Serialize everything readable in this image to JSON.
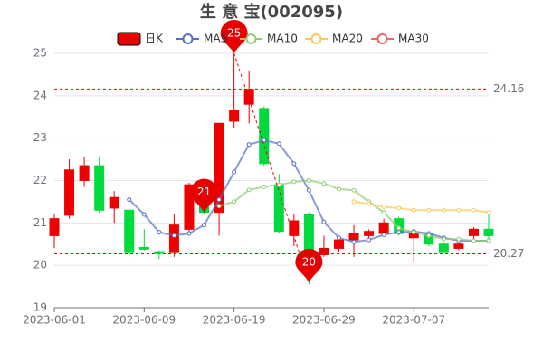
{
  "chart_data": {
    "type": "candlestick",
    "title": "生 意 宝(002095)",
    "categories": [
      "2023-06-01",
      null,
      null,
      null,
      null,
      null,
      "2023-06-09",
      null,
      null,
      null,
      null,
      null,
      "2023-06-19",
      null,
      null,
      null,
      null,
      null,
      "2023-06-29",
      null,
      null,
      null,
      null,
      null,
      "2023-07-07",
      null,
      null,
      null,
      null,
      null
    ],
    "ylim": [
      19,
      25
    ],
    "yticks": [
      19,
      20,
      21,
      22,
      23,
      24,
      25
    ],
    "grid": true,
    "series": [
      {
        "name": "日K",
        "up_color": "#ec0000",
        "down_color": "#00da3c",
        "color": "#ec0000",
        "open": [
          20.7,
          21.18,
          22.0,
          22.35,
          21.35,
          21.3,
          20.42,
          20.32,
          20.3,
          20.85,
          21.6,
          21.25,
          23.4,
          23.8,
          23.7,
          21.9,
          20.7,
          21.2,
          20.25,
          20.4,
          20.6,
          20.7,
          20.75,
          21.1,
          20.65,
          20.75,
          20.5,
          20.4,
          20.7,
          20.85
        ],
        "close": [
          21.1,
          22.25,
          22.35,
          21.3,
          21.6,
          20.3,
          20.38,
          20.28,
          20.95,
          21.9,
          21.25,
          23.35,
          23.65,
          24.15,
          22.4,
          20.8,
          21.05,
          20.1,
          20.4,
          20.6,
          20.75,
          20.8,
          21.0,
          20.75,
          20.75,
          20.5,
          20.3,
          20.5,
          20.85,
          20.7
        ],
        "low": [
          20.4,
          21.1,
          21.85,
          21.25,
          21.0,
          20.2,
          20.35,
          20.15,
          20.2,
          20.8,
          21.2,
          20.7,
          23.25,
          23.35,
          22.35,
          20.75,
          20.45,
          19.55,
          20.2,
          20.3,
          20.2,
          20.55,
          20.7,
          20.7,
          20.1,
          20.45,
          20.3,
          20.35,
          20.6,
          20.6
        ],
        "high": [
          21.2,
          22.5,
          22.55,
          22.55,
          21.75,
          21.3,
          20.85,
          20.35,
          21.2,
          21.95,
          21.9,
          23.35,
          25.0,
          24.6,
          23.75,
          22.15,
          21.2,
          21.25,
          20.7,
          20.7,
          20.95,
          20.85,
          21.1,
          21.15,
          20.8,
          20.8,
          20.55,
          20.6,
          20.9,
          21.2
        ]
      },
      {
        "name": "MA5",
        "color": "#5470c6",
        "values": [
          null,
          null,
          null,
          null,
          null,
          21.55,
          21.2,
          20.78,
          20.7,
          20.75,
          20.95,
          21.55,
          22.2,
          22.85,
          22.95,
          22.87,
          22.4,
          21.77,
          21.02,
          20.65,
          20.55,
          20.6,
          20.72,
          20.78,
          20.8,
          20.75,
          20.65,
          20.58,
          20.58,
          20.58
        ]
      },
      {
        "name": "MA10",
        "color": "#91cc75",
        "values": [
          null,
          null,
          null,
          null,
          null,
          null,
          null,
          null,
          null,
          null,
          null,
          21.4,
          21.5,
          21.78,
          21.85,
          21.9,
          21.97,
          22.0,
          21.93,
          21.8,
          21.77,
          21.5,
          21.25,
          20.88,
          20.78,
          20.7,
          20.62,
          20.62,
          20.58,
          20.58
        ]
      },
      {
        "name": "MA20",
        "color": "#fac858",
        "values": [
          null,
          null,
          null,
          null,
          null,
          null,
          null,
          null,
          null,
          null,
          null,
          null,
          null,
          null,
          null,
          null,
          null,
          null,
          null,
          null,
          21.5,
          21.45,
          21.38,
          21.35,
          21.3,
          21.3,
          21.3,
          21.3,
          21.3,
          21.25
        ]
      },
      {
        "name": "MA30",
        "color": "#ee6666",
        "values": [
          null,
          null,
          null,
          null,
          null,
          null,
          null,
          null,
          null,
          null,
          null,
          null,
          null,
          null,
          null,
          null,
          null,
          null,
          null,
          null,
          null,
          null,
          null,
          null,
          null,
          null,
          null,
          null,
          null,
          null
        ]
      }
    ],
    "mark_lines": [
      {
        "value": 24.16,
        "label": "24.16"
      },
      {
        "value": 20.27,
        "label": "20.27"
      }
    ],
    "markers": [
      {
        "label": "25",
        "value": 25.0,
        "at": 12
      },
      {
        "label": "21",
        "value": 21.25,
        "at": 10
      },
      {
        "label": "20",
        "value": 19.6,
        "at": 17
      }
    ],
    "mark_color": "#e60000"
  }
}
